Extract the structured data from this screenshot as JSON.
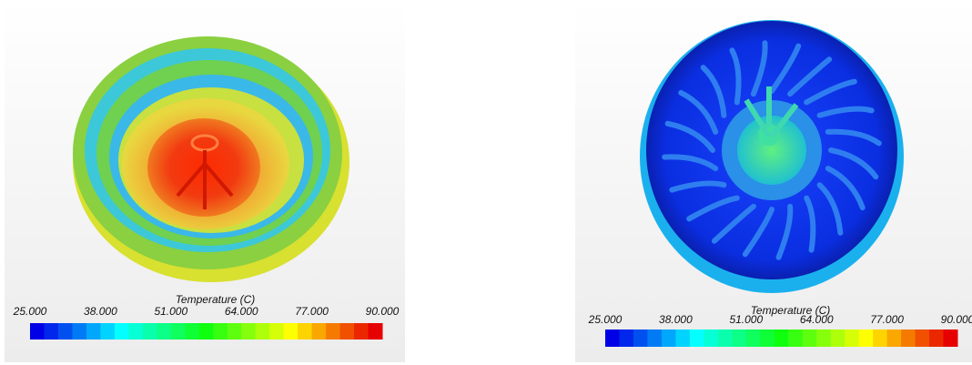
{
  "panels": [
    {
      "colorbar": {
        "title": "Temperature (C)",
        "ticks": [
          {
            "value": 25,
            "label": "25.000"
          },
          {
            "value": 38,
            "label": "38.000"
          },
          {
            "value": 51,
            "label": "51.000"
          },
          {
            "value": 64,
            "label": "64.000"
          },
          {
            "value": 77,
            "label": "77.000"
          },
          {
            "value": 90,
            "label": "90.000"
          }
        ]
      }
    },
    {
      "colorbar": {
        "title": "Temperature (C)",
        "ticks": [
          {
            "value": 25,
            "label": "25.000"
          },
          {
            "value": 38,
            "label": "38.000"
          },
          {
            "value": 51,
            "label": "51.000"
          },
          {
            "value": 64,
            "label": "64.000"
          },
          {
            "value": 77,
            "label": "77.000"
          },
          {
            "value": 90,
            "label": "90.000"
          }
        ]
      }
    }
  ]
}
